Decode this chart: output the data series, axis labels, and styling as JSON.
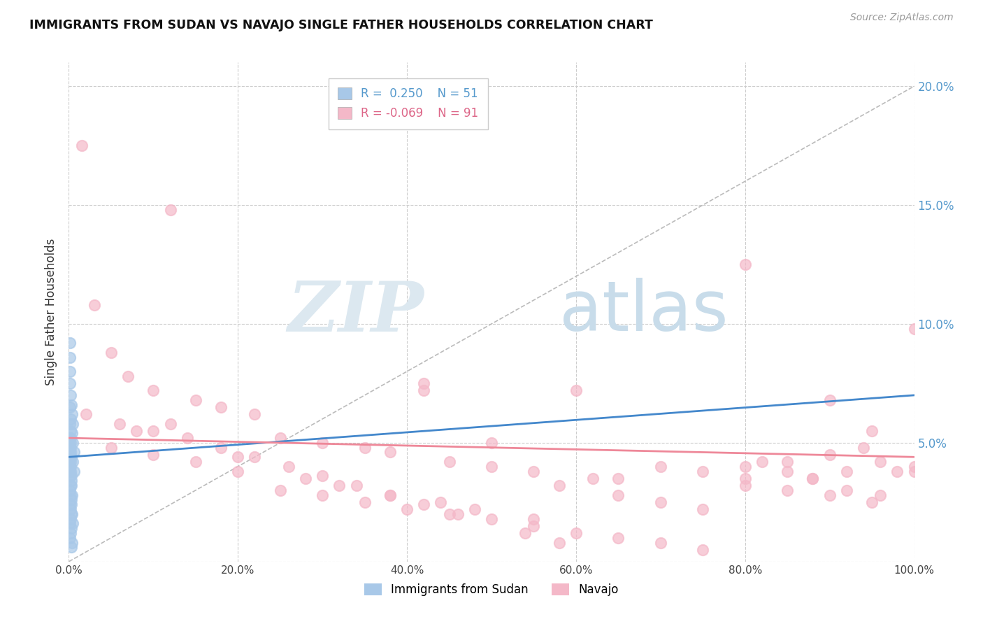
{
  "title": "IMMIGRANTS FROM SUDAN VS NAVAJO SINGLE FATHER HOUSEHOLDS CORRELATION CHART",
  "source": "Source: ZipAtlas.com",
  "ylabel": "Single Father Households",
  "xlim": [
    0,
    1.0
  ],
  "ylim": [
    0,
    0.21
  ],
  "xticks": [
    0.0,
    0.2,
    0.4,
    0.6,
    0.8,
    1.0
  ],
  "xticklabels": [
    "0.0%",
    "20.0%",
    "40.0%",
    "60.0%",
    "80.0%",
    "100.0%"
  ],
  "yticks": [
    0.0,
    0.05,
    0.1,
    0.15,
    0.2
  ],
  "yticklabels": [
    "",
    "5.0%",
    "10.0%",
    "15.0%",
    "20.0%"
  ],
  "color_blue": "#a8c8e8",
  "color_pink": "#f4b8c8",
  "color_blue_line": "#4488cc",
  "color_pink_line": "#ee8899",
  "watermark_zip": "ZIP",
  "watermark_atlas": "atlas",
  "sudan_scatter": [
    [
      0.001,
      0.092
    ],
    [
      0.001,
      0.086
    ],
    [
      0.001,
      0.08
    ],
    [
      0.001,
      0.075
    ],
    [
      0.002,
      0.07
    ],
    [
      0.001,
      0.065
    ],
    [
      0.002,
      0.06
    ],
    [
      0.001,
      0.058
    ],
    [
      0.002,
      0.055
    ],
    [
      0.001,
      0.052
    ],
    [
      0.002,
      0.05
    ],
    [
      0.001,
      0.048
    ],
    [
      0.002,
      0.046
    ],
    [
      0.001,
      0.044
    ],
    [
      0.002,
      0.042
    ],
    [
      0.001,
      0.04
    ],
    [
      0.002,
      0.038
    ],
    [
      0.001,
      0.036
    ],
    [
      0.003,
      0.034
    ],
    [
      0.002,
      0.032
    ],
    [
      0.001,
      0.03
    ],
    [
      0.002,
      0.028
    ],
    [
      0.003,
      0.026
    ],
    [
      0.001,
      0.024
    ],
    [
      0.002,
      0.022
    ],
    [
      0.003,
      0.02
    ],
    [
      0.002,
      0.018
    ],
    [
      0.001,
      0.016
    ],
    [
      0.003,
      0.014
    ],
    [
      0.002,
      0.012
    ],
    [
      0.001,
      0.01
    ],
    [
      0.004,
      0.008
    ],
    [
      0.003,
      0.006
    ],
    [
      0.002,
      0.052
    ],
    [
      0.002,
      0.048
    ],
    [
      0.003,
      0.044
    ],
    [
      0.002,
      0.04
    ],
    [
      0.003,
      0.036
    ],
    [
      0.003,
      0.032
    ],
    [
      0.004,
      0.028
    ],
    [
      0.003,
      0.024
    ],
    [
      0.004,
      0.02
    ],
    [
      0.005,
      0.016
    ],
    [
      0.004,
      0.062
    ],
    [
      0.003,
      0.066
    ],
    [
      0.005,
      0.058
    ],
    [
      0.004,
      0.054
    ],
    [
      0.005,
      0.05
    ],
    [
      0.006,
      0.046
    ],
    [
      0.005,
      0.042
    ],
    [
      0.006,
      0.038
    ]
  ],
  "navajo_scatter": [
    [
      0.015,
      0.175
    ],
    [
      0.12,
      0.148
    ],
    [
      0.03,
      0.108
    ],
    [
      0.05,
      0.088
    ],
    [
      0.07,
      0.078
    ],
    [
      0.42,
      0.075
    ],
    [
      0.1,
      0.072
    ],
    [
      0.15,
      0.068
    ],
    [
      0.18,
      0.065
    ],
    [
      0.22,
      0.062
    ],
    [
      0.12,
      0.058
    ],
    [
      0.08,
      0.055
    ],
    [
      0.25,
      0.052
    ],
    [
      0.3,
      0.05
    ],
    [
      0.35,
      0.048
    ],
    [
      0.38,
      0.046
    ],
    [
      0.42,
      0.072
    ],
    [
      0.2,
      0.044
    ],
    [
      0.45,
      0.042
    ],
    [
      0.5,
      0.04
    ],
    [
      0.55,
      0.038
    ],
    [
      0.6,
      0.072
    ],
    [
      0.65,
      0.035
    ],
    [
      0.7,
      0.04
    ],
    [
      0.75,
      0.038
    ],
    [
      0.8,
      0.125
    ],
    [
      0.82,
      0.042
    ],
    [
      0.85,
      0.038
    ],
    [
      0.88,
      0.035
    ],
    [
      0.9,
      0.068
    ],
    [
      0.92,
      0.038
    ],
    [
      0.94,
      0.048
    ],
    [
      0.96,
      0.042
    ],
    [
      0.98,
      0.038
    ],
    [
      1.0,
      0.098
    ],
    [
      0.25,
      0.03
    ],
    [
      0.3,
      0.028
    ],
    [
      0.35,
      0.025
    ],
    [
      0.4,
      0.022
    ],
    [
      0.45,
      0.02
    ],
    [
      0.5,
      0.018
    ],
    [
      0.55,
      0.015
    ],
    [
      0.6,
      0.012
    ],
    [
      0.65,
      0.01
    ],
    [
      0.7,
      0.008
    ],
    [
      0.75,
      0.005
    ],
    [
      0.8,
      0.035
    ],
    [
      0.85,
      0.03
    ],
    [
      0.9,
      0.028
    ],
    [
      0.95,
      0.025
    ],
    [
      1.0,
      0.038
    ],
    [
      0.05,
      0.048
    ],
    [
      0.1,
      0.045
    ],
    [
      0.15,
      0.042
    ],
    [
      0.2,
      0.038
    ],
    [
      0.28,
      0.035
    ],
    [
      0.32,
      0.032
    ],
    [
      0.38,
      0.028
    ],
    [
      0.44,
      0.025
    ],
    [
      0.48,
      0.022
    ],
    [
      0.55,
      0.018
    ],
    [
      0.58,
      0.032
    ],
    [
      0.65,
      0.028
    ],
    [
      0.7,
      0.025
    ],
    [
      0.75,
      0.022
    ],
    [
      0.8,
      0.04
    ],
    [
      0.88,
      0.035
    ],
    [
      0.92,
      0.03
    ],
    [
      0.96,
      0.028
    ],
    [
      0.02,
      0.062
    ],
    [
      0.06,
      0.058
    ],
    [
      0.1,
      0.055
    ],
    [
      0.14,
      0.052
    ],
    [
      0.18,
      0.048
    ],
    [
      0.22,
      0.044
    ],
    [
      0.26,
      0.04
    ],
    [
      0.3,
      0.036
    ],
    [
      0.34,
      0.032
    ],
    [
      0.38,
      0.028
    ],
    [
      0.42,
      0.024
    ],
    [
      0.46,
      0.02
    ],
    [
      0.5,
      0.05
    ],
    [
      0.54,
      0.012
    ],
    [
      0.58,
      0.008
    ],
    [
      0.62,
      0.035
    ],
    [
      0.8,
      0.032
    ],
    [
      0.85,
      0.042
    ],
    [
      0.9,
      0.045
    ],
    [
      0.95,
      0.055
    ],
    [
      1.0,
      0.04
    ]
  ],
  "blue_line_x": [
    0.001,
    0.25
  ],
  "blue_line_y": [
    0.046,
    0.06
  ],
  "pink_line_x": [
    0.0,
    1.0
  ],
  "pink_line_y": [
    0.051,
    0.044
  ]
}
